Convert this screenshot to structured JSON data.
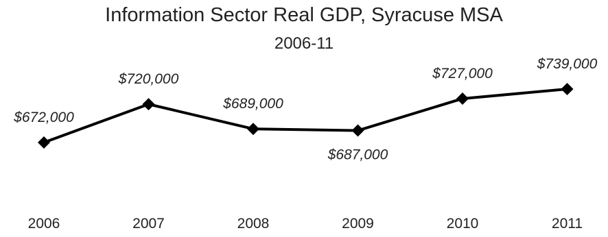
{
  "chart_data": {
    "type": "line",
    "title": "Information Sector Real GDP, Syracuse MSA",
    "subtitle": "2006-11",
    "xlabel": "",
    "ylabel": "",
    "x": [
      "2006",
      "2007",
      "2008",
      "2009",
      "2010",
      "2011"
    ],
    "values": [
      672000,
      720000,
      689000,
      687000,
      727000,
      739000
    ],
    "data_labels": [
      "$672,000",
      "$720,000",
      "$689,000",
      "$687,000",
      "$727,000",
      "$739,000"
    ],
    "label_positions": [
      "above",
      "above",
      "above",
      "below",
      "above",
      "above"
    ],
    "ylim": [
      640000,
      760000
    ],
    "grid": false,
    "legend": "none",
    "marker": "diamond",
    "line_color": "#000000"
  }
}
